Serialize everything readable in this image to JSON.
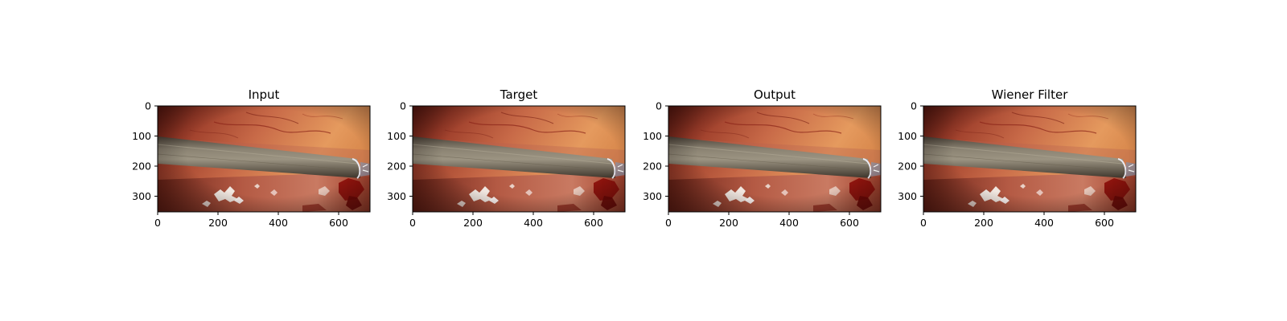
{
  "figure": {
    "panels": [
      {
        "title": "Input"
      },
      {
        "title": "Target"
      },
      {
        "title": "Output"
      },
      {
        "title": "Wiener Filter"
      }
    ],
    "image_description": "laparoscopic view: reddish-orange tissue with vessels, grey cylindrical surgical instrument crossing diagonally, white specular highlights and dark red blood at bottom",
    "x_ticks": [
      0,
      200,
      400,
      600
    ],
    "y_ticks": [
      0,
      100,
      200,
      300
    ],
    "x_range": [
      0,
      704
    ],
    "y_range": [
      352,
      0
    ],
    "colors": {
      "tissue_light": "#e8a070",
      "tissue_dark": "#6e1a10",
      "instrument": "#7a7060",
      "highlight": "#f4f0ec",
      "blood": "#8a0c08"
    }
  }
}
